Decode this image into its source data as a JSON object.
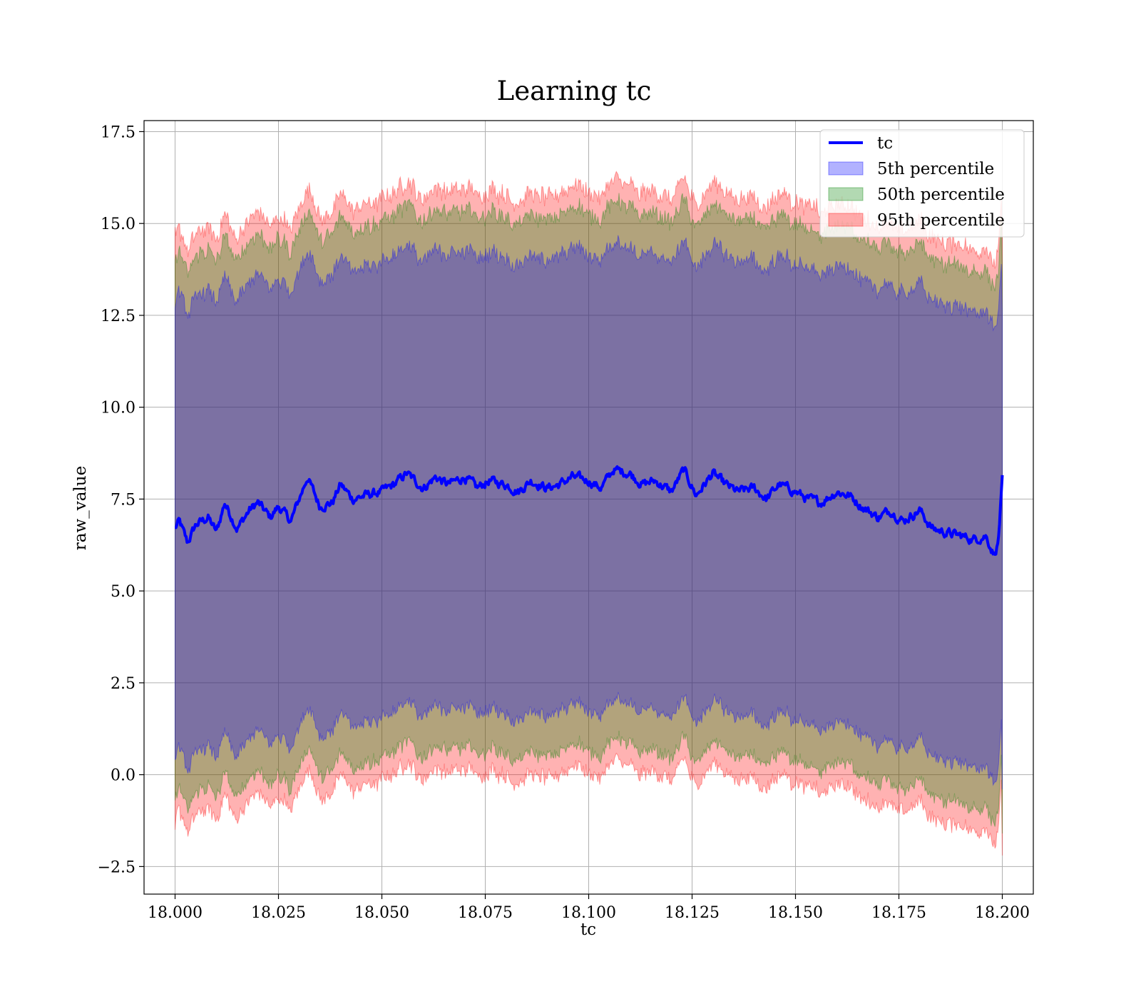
{
  "chart_data": {
    "type": "line",
    "title": "Learning tc",
    "xlabel": "tc",
    "ylabel": "raw_value",
    "xlim": [
      17.9925,
      18.2075
    ],
    "ylim": [
      -3.25,
      17.8
    ],
    "xticks": [
      18.0,
      18.025,
      18.05,
      18.075,
      18.1,
      18.125,
      18.15,
      18.175,
      18.2
    ],
    "xtick_labels": [
      "18.000",
      "18.025",
      "18.050",
      "18.075",
      "18.100",
      "18.125",
      "18.150",
      "18.175",
      "18.200"
    ],
    "yticks": [
      -2.5,
      0.0,
      2.5,
      5.0,
      7.5,
      10.0,
      12.5,
      15.0,
      17.5
    ],
    "ytick_labels": [
      "−2.5",
      "0.0",
      "2.5",
      "5.0",
      "7.5",
      "10.0",
      "12.5",
      "15.0",
      "17.5"
    ],
    "grid": true,
    "legend_position": "top-right",
    "x_key": [
      18.0,
      18.001,
      18.003,
      18.005,
      18.008,
      18.01,
      18.012,
      18.015,
      18.018,
      18.02,
      18.023,
      18.025,
      18.028,
      18.03,
      18.032,
      18.035,
      18.038,
      18.04,
      18.043,
      18.046,
      18.05,
      18.053,
      18.056,
      18.06,
      18.063,
      18.066,
      18.07,
      18.073,
      18.076,
      18.08,
      18.083,
      18.086,
      18.09,
      18.093,
      18.096,
      18.1,
      18.103,
      18.106,
      18.11,
      18.113,
      18.116,
      18.12,
      18.123,
      18.126,
      18.13,
      18.133,
      18.136,
      18.14,
      18.143,
      18.146,
      18.15,
      18.153,
      18.156,
      18.16,
      18.163,
      18.166,
      18.17,
      18.173,
      18.176,
      18.18,
      18.183,
      18.186,
      18.19,
      18.193,
      18.196,
      18.198,
      18.199,
      18.2
    ],
    "series": [
      {
        "name": "tc",
        "color": "#0000ff",
        "y_key": [
          6.7,
          6.9,
          6.3,
          6.8,
          7.0,
          6.6,
          7.4,
          6.7,
          7.2,
          7.4,
          7.0,
          7.3,
          6.9,
          7.5,
          8.1,
          7.3,
          7.4,
          7.9,
          7.5,
          7.6,
          7.7,
          7.9,
          8.2,
          7.8,
          8.1,
          7.9,
          8.1,
          7.8,
          8.0,
          7.9,
          7.7,
          8.0,
          7.8,
          7.9,
          8.1,
          8.0,
          7.8,
          8.3,
          8.2,
          7.9,
          8.0,
          7.7,
          8.3,
          7.6,
          8.2,
          7.9,
          7.7,
          7.8,
          7.5,
          7.9,
          7.7,
          7.5,
          7.4,
          7.7,
          7.6,
          7.3,
          7.0,
          7.2,
          6.9,
          7.2,
          6.7,
          6.6,
          6.5,
          6.4,
          6.5,
          6.0,
          6.3,
          8.0
        ],
        "jitter": 0.22
      },
      {
        "name": "5th percentile",
        "color": "#0000ff",
        "opacity": 0.3,
        "offset_upper": 6.2,
        "offset_lower": 6.2,
        "end_upper": [
          12.7,
          12.5
        ],
        "end_lower": [
          0.4,
          -0.4
        ],
        "jitter": 0.35
      },
      {
        "name": "50th percentile",
        "color": "#008000",
        "opacity": 0.3,
        "offset_upper": 7.3,
        "offset_lower": 7.3,
        "end_upper": [
          14.0,
          13.6
        ],
        "end_lower": [
          -0.7,
          -1.6
        ],
        "jitter": 0.38
      },
      {
        "name": "95th percentile",
        "color": "#ff0000",
        "opacity": 0.3,
        "offset_upper": 7.9,
        "offset_lower": 7.9,
        "end_upper": [
          14.9,
          14.6
        ],
        "end_lower": [
          -1.5,
          -2.2
        ],
        "jitter": 0.42
      }
    ]
  }
}
